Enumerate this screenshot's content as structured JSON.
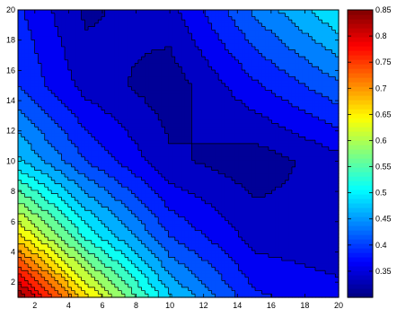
{
  "chart_data": {
    "type": "heatmap",
    "subtype": "filled-contour",
    "title": "",
    "xlabel": "",
    "ylabel": "",
    "xlim": [
      1,
      20
    ],
    "ylim": [
      1,
      20
    ],
    "xticks": [
      2,
      4,
      6,
      8,
      10,
      12,
      14,
      16,
      18,
      20
    ],
    "yticks": [
      2,
      4,
      6,
      8,
      10,
      12,
      14,
      16,
      18,
      20
    ],
    "colormap": "jet",
    "colorbar": {
      "range": [
        0.3,
        0.85
      ],
      "ticks": [
        0.35,
        0.4,
        0.45,
        0.5,
        0.55,
        0.6,
        0.65,
        0.7,
        0.75,
        0.8,
        0.85
      ],
      "placement": "right"
    },
    "contour_line_color": "#000000",
    "grid_values": {
      "x": [
        1,
        5,
        10,
        15,
        20
      ],
      "y": [
        1,
        5,
        10,
        15,
        20
      ],
      "z": [
        [
          0.85,
          0.66,
          0.48,
          0.38,
          0.36
        ],
        [
          0.66,
          0.52,
          0.4,
          0.34,
          0.33
        ],
        [
          0.48,
          0.4,
          0.33,
          0.31,
          0.34
        ],
        [
          0.4,
          0.34,
          0.31,
          0.37,
          0.42
        ],
        [
          0.38,
          0.32,
          0.34,
          0.43,
          0.5
        ]
      ]
    }
  }
}
